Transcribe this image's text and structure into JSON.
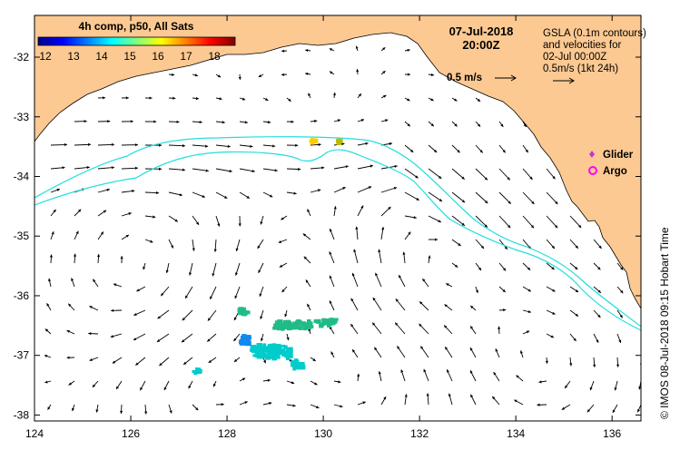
{
  "map": {
    "colorbar_title": "4h comp, p50, All Sats",
    "colorbar_ticks": [
      "12",
      "13",
      "14",
      "15",
      "16",
      "17",
      "18"
    ],
    "date_line1": "07-Jul-2018",
    "date_line2": "20:00Z",
    "info_lines": [
      "GSLA (0.1m contours)",
      "and velocities for",
      "02-Jul 00:00Z",
      "0.5m/s (1kt 24h)"
    ],
    "scale_label": "0.5 m/s",
    "legend": [
      {
        "label": "Glider",
        "color": "#cc33cc"
      },
      {
        "label": "Argo",
        "color": "#ff00ff"
      }
    ],
    "credit": "© IMOS 08-Jul-2018 09:15 Hobart Time",
    "x_ticks": [
      "124",
      "126",
      "128",
      "130",
      "132",
      "134",
      "136"
    ],
    "y_ticks": [
      "-32",
      "-33",
      "-34",
      "-35",
      "-36",
      "-37",
      "-38"
    ],
    "lon_range": [
      124,
      136.6
    ],
    "lat_range": [
      -38.1,
      -31.3
    ],
    "land_color": "#fcc992",
    "contour_color": "#22dddd"
  }
}
